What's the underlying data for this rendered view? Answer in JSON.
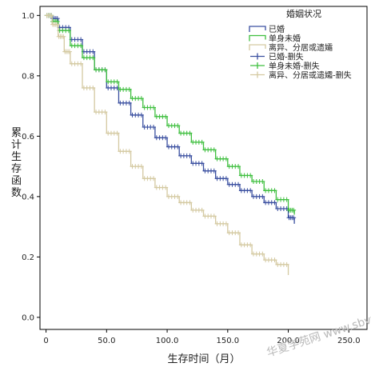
{
  "chart_data": {
    "type": "line",
    "step": true,
    "ylabel": "累计生存函数",
    "xlabel": "生存时间（月）",
    "xlim": [
      -5,
      265
    ],
    "ylim": [
      -0.04,
      1.03
    ],
    "xticks": [
      0,
      50,
      100,
      150,
      200,
      250
    ],
    "xtick_labels": [
      "0",
      "50.0",
      "100.0",
      "150.0",
      "200.0",
      "250.0"
    ],
    "yticks": [
      0.0,
      0.2,
      0.4,
      0.6,
      0.8,
      1.0
    ],
    "ytick_labels": [
      "0.0",
      "0.2",
      "0.4",
      "0.6",
      "0.8",
      "1.0"
    ],
    "legend_title": "婚姻状况",
    "legend_position": "top-right",
    "legend_items": [
      {
        "label": "已婚",
        "series": 0,
        "kind": "line"
      },
      {
        "label": "单身未婚",
        "series": 1,
        "kind": "line"
      },
      {
        "label": "离异、分居或遗孀",
        "series": 2,
        "kind": "line"
      },
      {
        "label": "已婚-删失",
        "series": 0,
        "kind": "censor"
      },
      {
        "label": "单身未婚-删失",
        "series": 1,
        "kind": "censor"
      },
      {
        "label": "离异、分居或遗孀-删失",
        "series": 2,
        "kind": "censor"
      }
    ],
    "series": [
      {
        "color": "#3a4fa0",
        "x": [
          0,
          5,
          10,
          20,
          30,
          40,
          50,
          60,
          70,
          80,
          90,
          100,
          110,
          120,
          130,
          140,
          150,
          160,
          170,
          180,
          190,
          200,
          205
        ],
        "y": [
          1.0,
          0.99,
          0.96,
          0.92,
          0.88,
          0.82,
          0.76,
          0.71,
          0.67,
          0.63,
          0.595,
          0.565,
          0.535,
          0.51,
          0.485,
          0.46,
          0.44,
          0.42,
          0.4,
          0.38,
          0.36,
          0.33,
          0.31
        ]
      },
      {
        "color": "#3fbf3f",
        "x": [
          0,
          5,
          10,
          20,
          30,
          40,
          50,
          60,
          70,
          80,
          90,
          100,
          110,
          120,
          130,
          140,
          150,
          160,
          170,
          180,
          190,
          200,
          205
        ],
        "y": [
          1.0,
          0.98,
          0.95,
          0.9,
          0.86,
          0.82,
          0.78,
          0.755,
          0.725,
          0.695,
          0.665,
          0.635,
          0.61,
          0.58,
          0.555,
          0.525,
          0.5,
          0.47,
          0.45,
          0.42,
          0.39,
          0.355,
          0.34
        ]
      },
      {
        "color": "#d4c9a1",
        "x": [
          0,
          5,
          10,
          15,
          20,
          30,
          40,
          50,
          60,
          70,
          80,
          90,
          100,
          110,
          120,
          130,
          140,
          150,
          160,
          170,
          180,
          190,
          200
        ],
        "y": [
          1.0,
          0.97,
          0.93,
          0.88,
          0.84,
          0.76,
          0.68,
          0.61,
          0.55,
          0.5,
          0.46,
          0.43,
          0.4,
          0.38,
          0.355,
          0.335,
          0.31,
          0.28,
          0.24,
          0.21,
          0.19,
          0.175,
          0.14
        ]
      }
    ]
  },
  "watermark": "华夏学苑网 www.sbvv.cn"
}
